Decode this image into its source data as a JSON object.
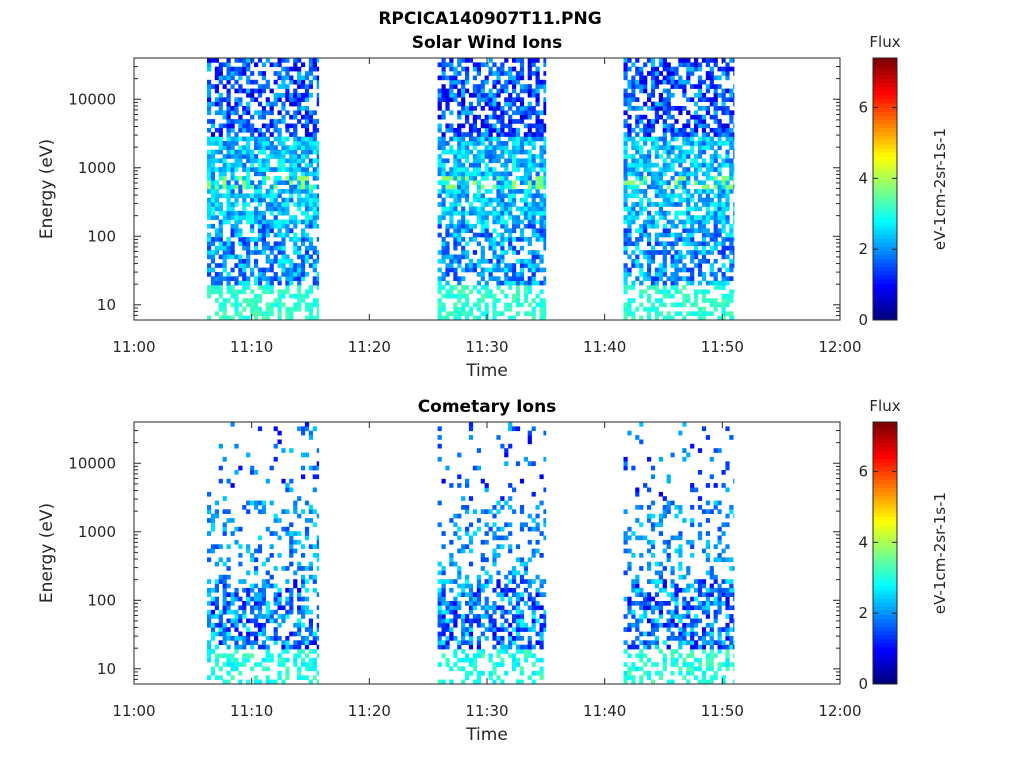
{
  "figure": {
    "title": "RPCICA140907T11.PNG"
  },
  "chart_data": [
    {
      "type": "heatmap",
      "title": "Solar Wind Ions",
      "xlabel": "Time",
      "ylabel": "Energy (eV)",
      "x_ticks": [
        "11:00",
        "11:10",
        "11:20",
        "11:30",
        "11:40",
        "11:50",
        "12:00"
      ],
      "x_range_minutes": [
        0,
        60
      ],
      "y_scale": "log",
      "y_ticks": [
        10,
        100,
        1000,
        10000
      ],
      "y_tick_labels": [
        "10",
        "100",
        "1000",
        "10000"
      ],
      "ylim": [
        6,
        40000
      ],
      "colorbar": {
        "title": "Flux",
        "label": "eV-1cm-2sr-1s-1",
        "ticks": [
          0,
          2,
          4,
          6
        ],
        "range": [
          0,
          7.4
        ],
        "colormap": "jet"
      },
      "data_blocks": [
        {
          "start_min": 6.2,
          "end_min": 15.7
        },
        {
          "start_min": 25.8,
          "end_min": 35.0
        },
        {
          "start_min": 41.6,
          "end_min": 51.0
        }
      ],
      "peak_flux": {
        "energy_eV": 650,
        "value": 3.8
      }
    },
    {
      "type": "heatmap",
      "title": "Cometary Ions",
      "xlabel": "Time",
      "ylabel": "Energy (eV)",
      "x_ticks": [
        "11:00",
        "11:10",
        "11:20",
        "11:30",
        "11:40",
        "11:50",
        "12:00"
      ],
      "x_range_minutes": [
        0,
        60
      ],
      "y_scale": "log",
      "y_ticks": [
        10,
        100,
        1000,
        10000
      ],
      "y_tick_labels": [
        "10",
        "100",
        "1000",
        "10000"
      ],
      "ylim": [
        6,
        40000
      ],
      "colorbar": {
        "title": "Flux",
        "label": "eV-1cm-2sr-1s-1",
        "ticks": [
          0,
          2,
          4,
          6
        ],
        "range": [
          0,
          7.4
        ],
        "colormap": "jet"
      },
      "data_blocks": [
        {
          "start_min": 6.2,
          "end_min": 15.7
        },
        {
          "start_min": 25.8,
          "end_min": 35.0
        },
        {
          "start_min": 41.6,
          "end_min": 51.0
        }
      ]
    }
  ]
}
